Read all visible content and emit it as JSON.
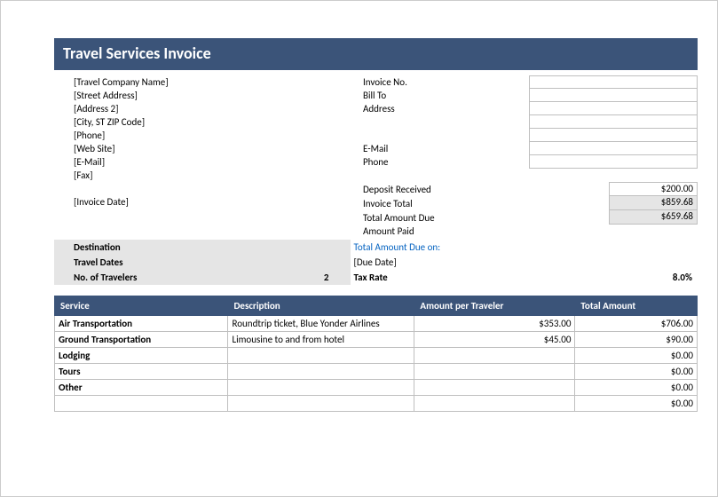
{
  "title": "Travel Services Invoice",
  "company": {
    "name": "[Travel Company Name]",
    "street": "[Street Address]",
    "address2": "[Address 2]",
    "cityzip": "[City, ST  ZIP Code]",
    "phone": "[Phone]",
    "website": "[Web Site]",
    "email": "[E-Mail]",
    "fax": "[Fax]",
    "invoiceDate": "[Invoice Date]"
  },
  "billLabels": {
    "invoiceNo": "Invoice No.",
    "billTo": "Bill To",
    "address": "Address",
    "email": "E-Mail",
    "phone": "Phone",
    "depositReceived": "Deposit Received",
    "invoiceTotal": "Invoice Total",
    "totalDue": "Total Amount Due",
    "amountPaid": "Amount Paid",
    "totalDueOn": "Total Amount Due on:",
    "dueDate": "[Due Date]",
    "taxRate": "Tax Rate"
  },
  "money": {
    "deposit": "$200.00",
    "invoiceTotal": "$859.68",
    "totalDue": "$659.68"
  },
  "dest": {
    "destinationLbl": "Destination",
    "travelDatesLbl": "Travel Dates",
    "numTravelersLbl": "No. of Travelers",
    "numTravelers": "2",
    "taxRate": "8.0%"
  },
  "serviceHeaders": {
    "service": "Service",
    "description": "Description",
    "amountPer": "Amount per Traveler",
    "total": "Total Amount"
  },
  "services": [
    {
      "svc": "Air Transportation",
      "desc": "Roundtrip ticket, Blue Yonder Airlines",
      "amt": "$353.00",
      "tot": "$706.00"
    },
    {
      "svc": "Ground Transportation",
      "desc": "Limousine to and from hotel",
      "amt": "$45.00",
      "tot": "$90.00"
    },
    {
      "svc": "Lodging",
      "desc": "",
      "amt": "",
      "tot": "$0.00"
    },
    {
      "svc": "Tours",
      "desc": "",
      "amt": "",
      "tot": "$0.00"
    },
    {
      "svc": "Other",
      "desc": "",
      "amt": "",
      "tot": "$0.00"
    },
    {
      "svc": "",
      "desc": "",
      "amt": "",
      "tot": "$0.00"
    }
  ],
  "colors": {
    "headerBg": "#3b5479",
    "headerText": "#ffffff",
    "border": "#bfbfbf",
    "shaded": "#e5e5e5",
    "link": "#0563c1"
  }
}
